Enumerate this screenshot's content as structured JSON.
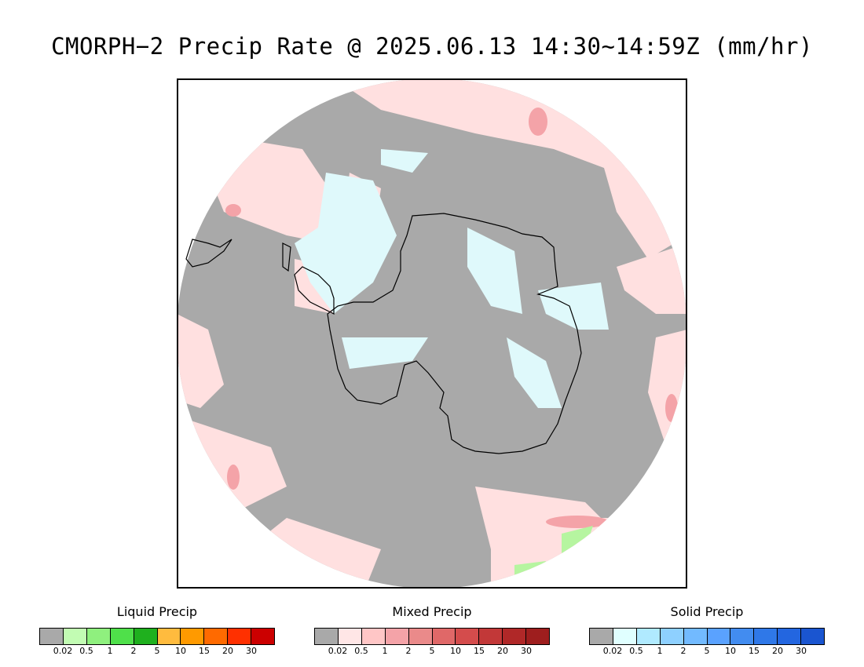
{
  "title": "CMORPH−2 Precip Rate @ 2025.06.13 14:30~14:59Z (mm/hr)",
  "colors": {
    "no_precip": "#a9a9a9",
    "mixed_light": "#ffe0e0",
    "mixed_med": "#f4a3a8",
    "solid_light": "#dff9fb",
    "liquid_light": "#b6f5a0",
    "coastline": "#000000"
  },
  "legends": [
    {
      "title": "Liquid Precip",
      "colors": [
        "#a9a9a9",
        "#c2fcb3",
        "#8ff07e",
        "#4fe04a",
        "#1fb01e",
        "#ffbb3e",
        "#ff9a00",
        "#ff6a00",
        "#ff3000",
        "#cc0000"
      ],
      "ticks": [
        "0.02",
        "0.5",
        "1",
        "2",
        "5",
        "10",
        "15",
        "20",
        "30"
      ]
    },
    {
      "title": "Mixed Precip",
      "colors": [
        "#a9a9a9",
        "#ffe6e6",
        "#ffc6c6",
        "#f4a3a8",
        "#ea8a8a",
        "#e06868",
        "#d44c4c",
        "#c23838",
        "#b02828",
        "#9e1e1e"
      ],
      "ticks": [
        "0.02",
        "0.5",
        "1",
        "2",
        "5",
        "10",
        "15",
        "20",
        "30"
      ]
    },
    {
      "title": "Solid Precip",
      "colors": [
        "#a9a9a9",
        "#e0ffff",
        "#b0eaff",
        "#8ed0ff",
        "#72baff",
        "#5aa2ff",
        "#428cf0",
        "#2f78e8",
        "#2366e0",
        "#1a55d0"
      ],
      "ticks": [
        "0.02",
        "0.5",
        "1",
        "2",
        "5",
        "10",
        "15",
        "20",
        "30"
      ]
    }
  ]
}
